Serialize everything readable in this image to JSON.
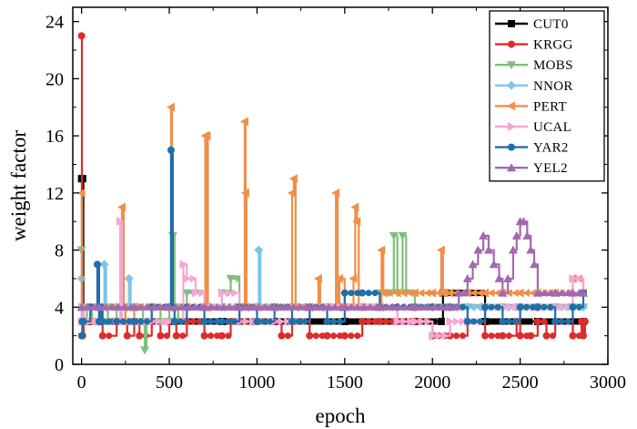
{
  "chart_data": {
    "type": "line",
    "title": "",
    "xlabel": "epoch",
    "ylabel": "weight factor",
    "xlim": [
      -50,
      3000
    ],
    "ylim": [
      0,
      25
    ],
    "xticks": [
      0,
      500,
      1000,
      1500,
      2000,
      2500,
      3000
    ],
    "yticks": [
      0,
      4,
      8,
      12,
      16,
      20,
      24
    ],
    "legend_position": "top-right",
    "series": [
      {
        "name": "CUT0",
        "color": "#000000",
        "marker": "square",
        "x": [
          0,
          2,
          6,
          10,
          40,
          100,
          200,
          500,
          800,
          1100,
          1500,
          1900,
          2050,
          2060,
          2300,
          2600,
          2860
        ],
        "y": [
          13,
          3,
          13,
          3,
          3,
          3,
          3,
          3,
          3,
          3,
          3,
          3,
          3,
          5,
          3,
          3,
          3
        ]
      },
      {
        "name": "KRGG",
        "color": "#dd2c2c",
        "marker": "circle",
        "x": [
          0,
          2,
          6,
          12,
          40,
          80,
          120,
          200,
          260,
          300,
          330,
          400,
          450,
          500,
          540,
          600,
          700,
          800,
          850,
          900,
          1000,
          1100,
          1140,
          1200,
          1300,
          1400,
          1500,
          1600,
          1700,
          1800,
          1900,
          2000,
          2100,
          2200,
          2300,
          2400,
          2480,
          2500,
          2560,
          2600,
          2650,
          2700,
          2800,
          2850,
          2860,
          2870
        ],
        "y": [
          23,
          3,
          2,
          3,
          3,
          3,
          2,
          3,
          2,
          3,
          2,
          3,
          2,
          3,
          2,
          3,
          2,
          2,
          3,
          3,
          3,
          3,
          2,
          3,
          2,
          2,
          2,
          3,
          3,
          3,
          3,
          2,
          2,
          3,
          2,
          2,
          3,
          2,
          2,
          3,
          2,
          3,
          2,
          3,
          2,
          3
        ]
      },
      {
        "name": "MOBS",
        "color": "#7fbf7b",
        "marker": "triangle-down",
        "x": [
          0,
          4,
          12,
          30,
          60,
          100,
          150,
          200,
          250,
          300,
          350,
          360,
          370,
          400,
          450,
          500,
          520,
          530,
          550,
          600,
          700,
          800,
          850,
          900,
          1000,
          1100,
          1200,
          1300,
          1400,
          1500,
          1600,
          1700,
          1750,
          1780,
          1800,
          1830,
          1850,
          1900,
          2000,
          2100,
          2200,
          2300,
          2400,
          2500,
          2600,
          2700,
          2800,
          2860
        ],
        "y": [
          8,
          4,
          4,
          3,
          4,
          3,
          4,
          3,
          4,
          4,
          3,
          1,
          3,
          4,
          3,
          4,
          9,
          3,
          4,
          5,
          4,
          5,
          6,
          4,
          4,
          4,
          4,
          4,
          4,
          4,
          4,
          5,
          5,
          9,
          5,
          9,
          5,
          4,
          4,
          4,
          4,
          4,
          4,
          4,
          4,
          4,
          4,
          4
        ]
      },
      {
        "name": "NNOR",
        "color": "#7ec4e8",
        "marker": "diamond",
        "x": [
          0,
          4,
          12,
          50,
          120,
          130,
          140,
          200,
          270,
          280,
          300,
          400,
          500,
          600,
          700,
          800,
          900,
          950,
          1000,
          1010,
          1020,
          1100,
          1200,
          1300,
          1400,
          1500,
          1600,
          1700,
          1800,
          1900,
          2000,
          2100,
          2200,
          2300,
          2400,
          2500,
          2600,
          2700,
          2800,
          2860
        ],
        "y": [
          6,
          4,
          3,
          4,
          4,
          7,
          4,
          4,
          6,
          4,
          4,
          4,
          4,
          4,
          4,
          4,
          4,
          4,
          4,
          8,
          4,
          4,
          4,
          4,
          4,
          4,
          4,
          4,
          4,
          4,
          4,
          4,
          4,
          4,
          4,
          4,
          4,
          4,
          4,
          4
        ]
      },
      {
        "name": "PERT",
        "color": "#f08f49",
        "marker": "triangle-left",
        "x": [
          0,
          3,
          10,
          100,
          200,
          230,
          240,
          250,
          300,
          400,
          500,
          510,
          515,
          520,
          600,
          700,
          705,
          710,
          715,
          720,
          800,
          900,
          930,
          935,
          940,
          1000,
          1100,
          1200,
          1210,
          1220,
          1300,
          1350,
          1360,
          1400,
          1450,
          1460,
          1470,
          1500,
          1550,
          1560,
          1570,
          1580,
          1600,
          1700,
          1710,
          1720,
          1800,
          1900,
          2000,
          2050,
          2060,
          2070,
          2100,
          2200,
          2300,
          2400,
          2500,
          2600,
          2700,
          2800,
          2860
        ],
        "y": [
          12,
          3,
          3,
          4,
          4,
          11,
          4,
          3,
          4,
          4,
          4,
          18,
          4,
          4,
          4,
          4,
          16,
          4,
          16,
          4,
          4,
          4,
          17,
          12,
          4,
          4,
          4,
          12,
          13,
          4,
          4,
          6,
          4,
          4,
          12,
          4,
          6,
          4,
          6,
          11,
          10,
          4,
          4,
          4,
          8,
          5,
          5,
          5,
          5,
          8,
          5,
          5,
          5,
          5,
          5,
          5,
          5,
          5,
          5,
          6,
          5
        ]
      },
      {
        "name": "UCAL",
        "color": "#f4a6d4",
        "marker": "triangle-right",
        "x": [
          0,
          4,
          10,
          100,
          200,
          220,
          230,
          240,
          300,
          400,
          500,
          580,
          600,
          650,
          700,
          800,
          900,
          1000,
          1100,
          1200,
          1300,
          1400,
          1500,
          1600,
          1700,
          1800,
          1900,
          2000,
          2100,
          2200,
          2300,
          2400,
          2500,
          2600,
          2700,
          2800,
          2860
        ],
        "y": [
          3,
          4,
          3,
          3,
          3,
          10,
          3,
          3,
          3,
          3,
          3,
          7,
          6,
          5,
          4,
          5,
          3,
          3,
          3,
          3,
          4,
          4,
          4,
          4,
          4,
          3,
          3,
          2,
          3,
          3,
          4,
          4,
          4,
          4,
          4,
          6,
          5
        ]
      },
      {
        "name": "YAR2",
        "color": "#1f6fa8",
        "marker": "circle",
        "x": [
          0,
          4,
          10,
          50,
          90,
          100,
          110,
          120,
          200,
          300,
          400,
          500,
          510,
          520,
          530,
          600,
          700,
          800,
          900,
          1000,
          1100,
          1200,
          1300,
          1400,
          1500,
          1600,
          1700,
          1800,
          1900,
          2000,
          2100,
          2200,
          2300,
          2400,
          2500,
          2600,
          2700,
          2800,
          2860
        ],
        "y": [
          2,
          3,
          3,
          4,
          7,
          3,
          4,
          3,
          3,
          3,
          4,
          4,
          15,
          4,
          3,
          4,
          3,
          3,
          4,
          3,
          4,
          3,
          4,
          3,
          5,
          5,
          4,
          4,
          4,
          4,
          4,
          3,
          4,
          3,
          4,
          4,
          3,
          4,
          5
        ]
      },
      {
        "name": "YEL2",
        "color": "#a468b0",
        "marker": "triangle-up",
        "x": [
          0,
          100,
          300,
          500,
          700,
          900,
          1100,
          1300,
          1500,
          1700,
          1900,
          2100,
          2150,
          2200,
          2230,
          2260,
          2290,
          2320,
          2350,
          2380,
          2400,
          2430,
          2460,
          2480,
          2500,
          2520,
          2540,
          2560,
          2580,
          2600,
          2700,
          2800,
          2860
        ],
        "y": [
          4,
          4,
          4,
          4,
          4,
          4,
          4,
          4,
          4,
          4,
          4,
          4,
          5,
          6,
          7,
          8,
          9,
          8,
          7,
          6,
          5,
          6,
          8,
          9,
          10,
          10,
          9,
          8,
          7,
          5,
          5,
          5,
          5
        ]
      }
    ]
  }
}
